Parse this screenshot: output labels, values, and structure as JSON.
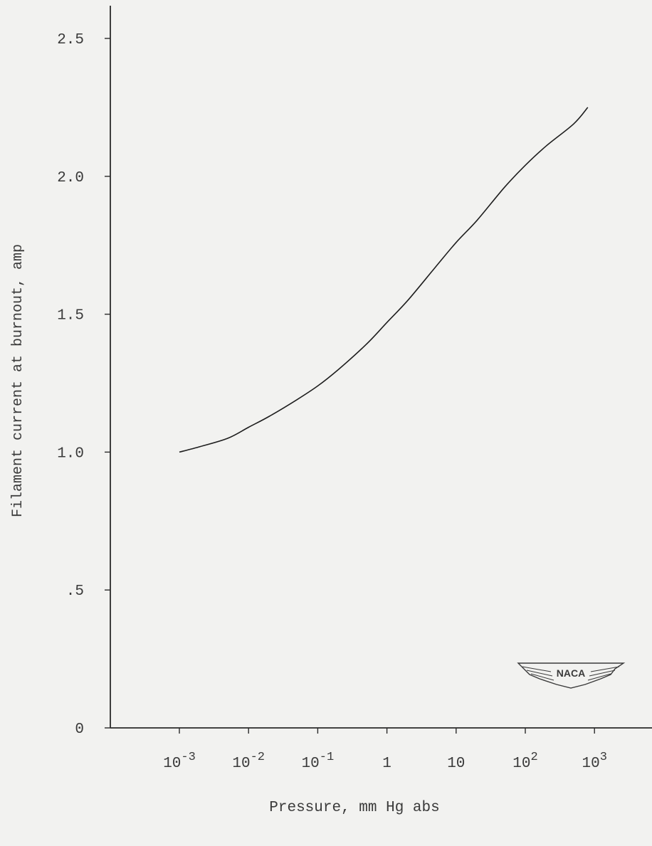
{
  "chart_data": {
    "type": "line",
    "xlabel": "Pressure, mm Hg abs",
    "ylabel": "Filament current at burnout, amp",
    "x_scale": "log",
    "xlim": [
      0.0001,
      10000
    ],
    "ylim": [
      0,
      2.6
    ],
    "y_ticks": [
      {
        "value": 0,
        "label": "0"
      },
      {
        "value": 0.5,
        "label": ".5"
      },
      {
        "value": 1.0,
        "label": "1.0"
      },
      {
        "value": 1.5,
        "label": "1.5"
      },
      {
        "value": 2.0,
        "label": "2.0"
      },
      {
        "value": 2.5,
        "label": "2.5"
      }
    ],
    "x_ticks": [
      {
        "value": 0.001,
        "base": "10",
        "exp": "-3"
      },
      {
        "value": 0.01,
        "base": "10",
        "exp": "-2"
      },
      {
        "value": 0.1,
        "base": "10",
        "exp": "-1"
      },
      {
        "value": 1,
        "base": "1",
        "exp": ""
      },
      {
        "value": 10,
        "base": "10",
        "exp": ""
      },
      {
        "value": 100,
        "base": "10",
        "exp": "2"
      },
      {
        "value": 1000,
        "base": "10",
        "exp": "3"
      }
    ],
    "grid": false,
    "series": [
      {
        "x": [
          0.001,
          0.002,
          0.005,
          0.01,
          0.02,
          0.05,
          0.1,
          0.2,
          0.5,
          1,
          2,
          5,
          10,
          20,
          50,
          100,
          200,
          500,
          800
        ],
        "y": [
          1.0,
          1.02,
          1.05,
          1.09,
          1.13,
          1.19,
          1.24,
          1.3,
          1.39,
          1.47,
          1.55,
          1.67,
          1.76,
          1.84,
          1.96,
          2.04,
          2.11,
          2.19,
          2.25
        ]
      }
    ],
    "color": "#1e1e1e"
  },
  "logo": {
    "text": "NACA",
    "icon": "naca-wings-logo"
  }
}
